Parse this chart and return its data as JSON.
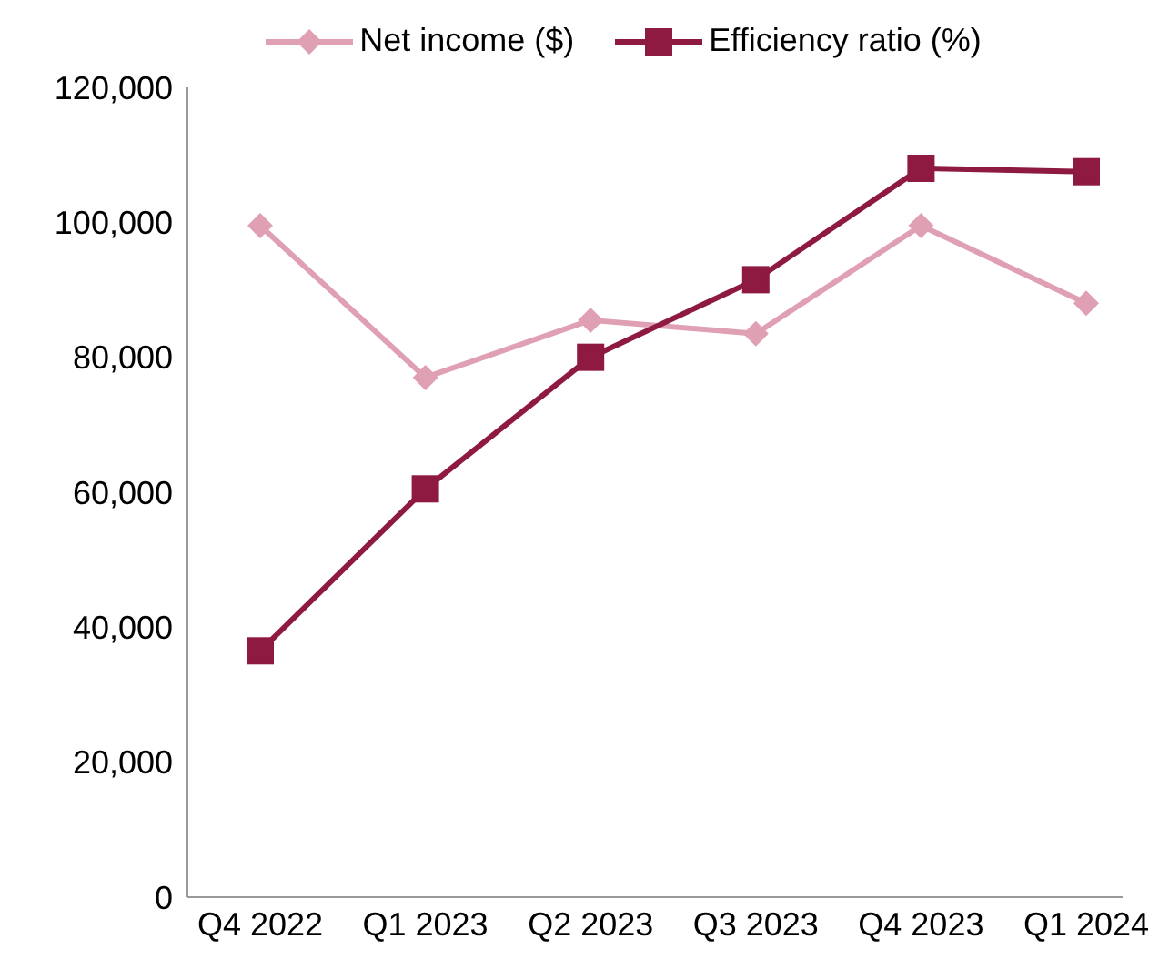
{
  "chart_data": {
    "type": "line",
    "categories": [
      "Q4 2022",
      "Q1 2023",
      "Q2 2023",
      "Q3 2023",
      "Q4 2023",
      "Q1 2024"
    ],
    "series": [
      {
        "name": "Net income ($)",
        "color": "#e0a0b4",
        "marker": "diamond",
        "values": [
          99500,
          77000,
          85500,
          83500,
          99500,
          88000
        ]
      },
      {
        "name": "Efficiency ratio (%)",
        "color": "#8e1a42",
        "marker": "square",
        "values": [
          36500,
          60500,
          80000,
          91500,
          108000,
          107500
        ]
      }
    ],
    "ylim": [
      0,
      120000
    ],
    "yticks": [
      0,
      {
        "value": 20000,
        "label": "20,000"
      },
      {
        "value": 40000,
        "label": "40,000"
      },
      {
        "value": 60000,
        "label": "60,000"
      },
      {
        "value": 80000,
        "label": "80,000"
      },
      {
        "value": 100000,
        "label": "100,000"
      },
      {
        "value": 120000,
        "label": "120,000"
      }
    ],
    "grid": false,
    "legend": "top",
    "line_style": "solid"
  }
}
